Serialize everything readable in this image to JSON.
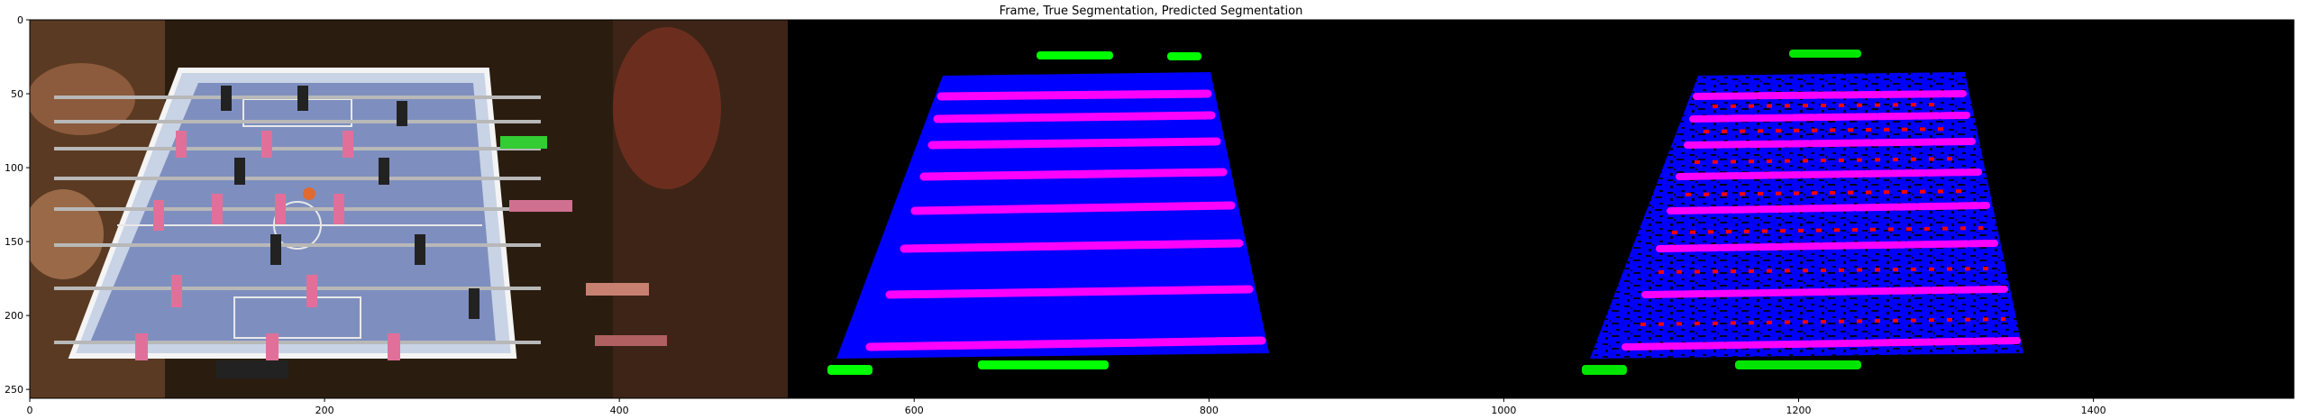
{
  "figure": {
    "title": "Frame, True Segmentation, Predicted Segmentation",
    "x_ticks": [
      "0",
      "200",
      "400",
      "600",
      "800",
      "1000",
      "1200",
      "1400"
    ],
    "y_ticks": [
      "0",
      "50",
      "100",
      "150",
      "200",
      "250"
    ],
    "panels": [
      {
        "kind": "video-frame",
        "subject": "foosball table"
      },
      {
        "kind": "true-segmentation"
      },
      {
        "kind": "predicted-segmentation"
      }
    ],
    "colors": {
      "table": "#0000ff",
      "rods": "#ff00ff",
      "balls_or_handles": "#00ff00",
      "errors": "#ff0000",
      "background": "#000000"
    }
  }
}
